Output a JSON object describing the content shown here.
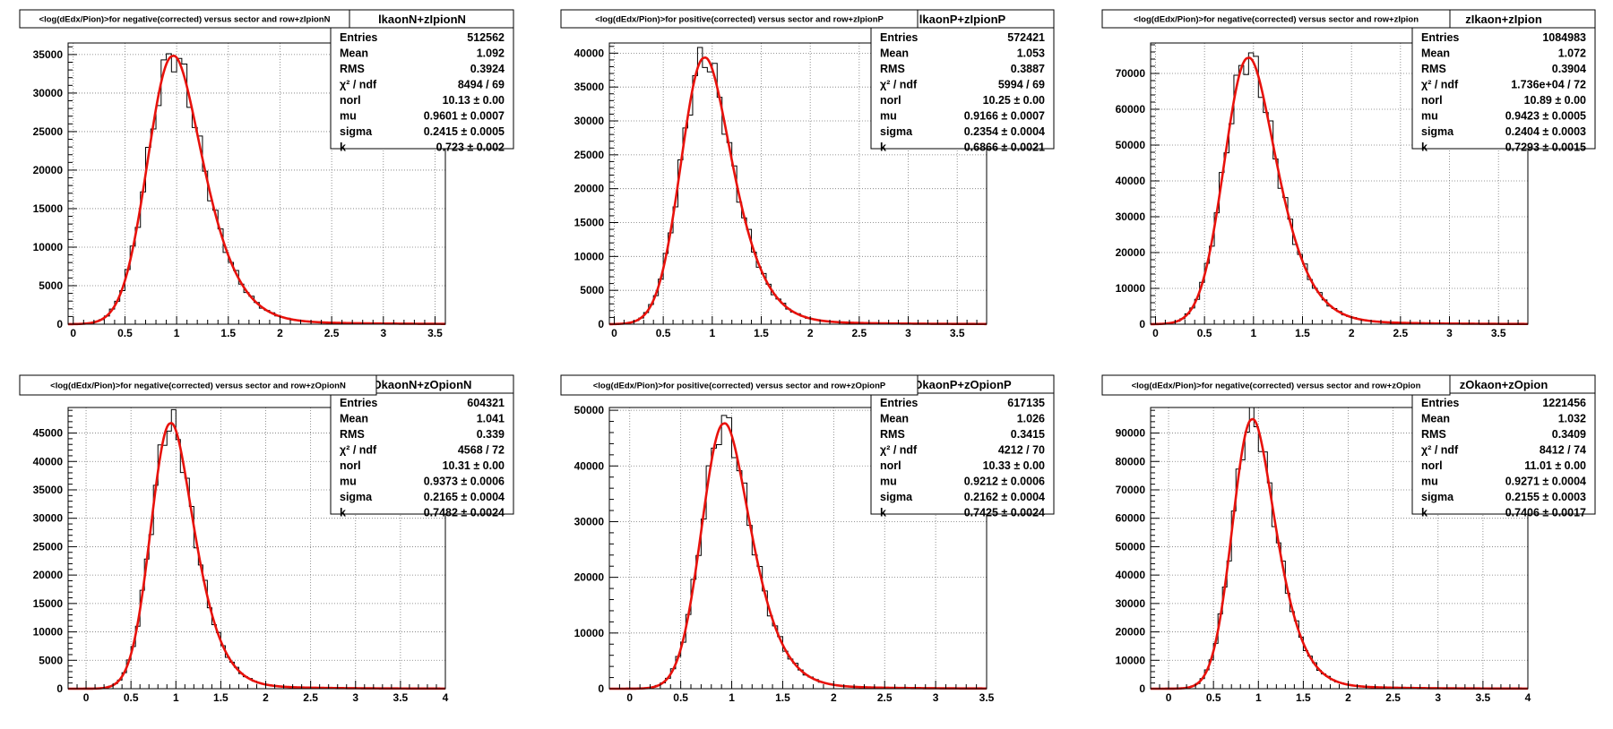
{
  "chart_data": [
    {
      "type": "histogram",
      "title": "<log(dEdx/Pion)>for negative(corrected) versus sector and row+zIpionN",
      "stats_name": "lkaonN+zIpionN",
      "xlim": [
        -0.05,
        3.6
      ],
      "ylim": [
        0,
        36500
      ],
      "xticks": [
        "0",
        "0.5",
        "1",
        "1.5",
        "2",
        "2.5",
        "3",
        "3.5"
      ],
      "yticks": [
        0,
        5000,
        10000,
        15000,
        20000,
        25000,
        30000,
        35000
      ],
      "grid": true,
      "peak": 34800,
      "stats": [
        {
          "label": "Entries",
          "value": "512562"
        },
        {
          "label": "Mean",
          "value": "1.092"
        },
        {
          "label": "RMS",
          "value": "0.3924"
        },
        {
          "label": "χ² / ndf",
          "value": "8494 / 69"
        },
        {
          "label": "norl",
          "value": "10.13 ± 0.00"
        },
        {
          "label": "mu",
          "value": "0.9601 ± 0.0007"
        },
        {
          "label": "sigma",
          "value": "0.2415 ± 0.0005"
        },
        {
          "label": "k",
          "value": "0.723 ± 0.002"
        }
      ],
      "fit": {
        "mu": 0.9601,
        "sigma": 0.2415,
        "k": 0.723
      }
    },
    {
      "type": "histogram",
      "title": "<log(dEdx/Pion)>for positive(corrected) versus sector and row+zIpionP",
      "stats_name": "lkaonP+zIpionP",
      "xlim": [
        -0.05,
        3.8
      ],
      "ylim": [
        0,
        41500
      ],
      "xticks": [
        "0",
        "0.5",
        "1",
        "1.5",
        "2",
        "2.5",
        "3",
        "3.5"
      ],
      "yticks": [
        0,
        5000,
        10000,
        15000,
        20000,
        25000,
        30000,
        35000,
        40000
      ],
      "grid": true,
      "peak": 39300,
      "stats": [
        {
          "label": "Entries",
          "value": "572421"
        },
        {
          "label": "Mean",
          "value": "1.053"
        },
        {
          "label": "RMS",
          "value": "0.3887"
        },
        {
          "label": "χ² / ndf",
          "value": "5994 / 69"
        },
        {
          "label": "norl",
          "value": "10.25 ± 0.00"
        },
        {
          "label": "mu",
          "value": "0.9166 ± 0.0007"
        },
        {
          "label": "sigma",
          "value": "0.2354 ± 0.0004"
        },
        {
          "label": "k",
          "value": "0.6866 ± 0.0021"
        }
      ],
      "fit": {
        "mu": 0.9166,
        "sigma": 0.2354,
        "k": 0.6866
      }
    },
    {
      "type": "histogram",
      "title": "<log(dEdx/Pion)>for negative(corrected) versus sector and row+zIpion",
      "stats_name": "zIkaon+zIpion",
      "xlim": [
        -0.05,
        3.8
      ],
      "ylim": [
        0,
        78500
      ],
      "xticks": [
        "0",
        "0.5",
        "1",
        "1.5",
        "2",
        "2.5",
        "3",
        "3.5"
      ],
      "yticks": [
        0,
        10000,
        20000,
        30000,
        40000,
        50000,
        60000,
        70000
      ],
      "grid": true,
      "peak": 74300,
      "stats": [
        {
          "label": "Entries",
          "value": "1084983"
        },
        {
          "label": "Mean",
          "value": "1.072"
        },
        {
          "label": "RMS",
          "value": "0.3904"
        },
        {
          "label": "χ² / ndf",
          "value": "1.736e+04 / 72"
        },
        {
          "label": "norl",
          "value": "10.89 ± 0.00"
        },
        {
          "label": "mu",
          "value": "0.9423 ± 0.0005"
        },
        {
          "label": "sigma",
          "value": "0.2404 ± 0.0003"
        },
        {
          "label": "k",
          "value": "0.7293 ± 0.0015"
        }
      ],
      "fit": {
        "mu": 0.9423,
        "sigma": 0.2404,
        "k": 0.7293
      }
    },
    {
      "type": "histogram",
      "title": "<log(dEdx/Pion)>for negative(corrected) versus sector and row+zOpionN",
      "stats_name": "OkaonN+zOpionN",
      "xlim": [
        -0.2,
        4.0
      ],
      "ylim": [
        0,
        49500
      ],
      "xticks": [
        "0",
        "0.5",
        "1",
        "1.5",
        "2",
        "2.5",
        "3",
        "3.5",
        "4"
      ],
      "yticks": [
        0,
        5000,
        10000,
        15000,
        20000,
        25000,
        30000,
        35000,
        40000,
        45000
      ],
      "grid": true,
      "peak": 46700,
      "stats": [
        {
          "label": "Entries",
          "value": "604321"
        },
        {
          "label": "Mean",
          "value": "1.041"
        },
        {
          "label": "RMS",
          "value": "0.339"
        },
        {
          "label": "χ² / ndf",
          "value": "4568 / 72"
        },
        {
          "label": "norl",
          "value": "10.31 ± 0.00"
        },
        {
          "label": "mu",
          "value": "0.9373 ± 0.0006"
        },
        {
          "label": "sigma",
          "value": "0.2165 ± 0.0004"
        },
        {
          "label": "k",
          "value": "0.7482 ± 0.0024"
        }
      ],
      "fit": {
        "mu": 0.9373,
        "sigma": 0.2165,
        "k": 0.7482
      }
    },
    {
      "type": "histogram",
      "title": "<log(dEdx/Pion)>for positive(corrected) versus sector and row+zOpionP",
      "stats_name": "OkaonP+zOpionP",
      "xlim": [
        -0.2,
        3.5
      ],
      "ylim": [
        0,
        50500
      ],
      "xticks": [
        "0",
        "0.5",
        "1",
        "1.5",
        "2",
        "2.5",
        "3",
        "3.5"
      ],
      "yticks": [
        0,
        10000,
        20000,
        30000,
        40000,
        50000
      ],
      "grid": true,
      "peak": 47600,
      "stats": [
        {
          "label": "Entries",
          "value": "617135"
        },
        {
          "label": "Mean",
          "value": "1.026"
        },
        {
          "label": "RMS",
          "value": "0.3415"
        },
        {
          "label": "χ² / ndf",
          "value": "4212 / 70"
        },
        {
          "label": "norl",
          "value": "10.33 ± 0.00"
        },
        {
          "label": "mu",
          "value": "0.9212 ± 0.0006"
        },
        {
          "label": "sigma",
          "value": "0.2162 ± 0.0004"
        },
        {
          "label": "k",
          "value": "0.7425 ± 0.0024"
        }
      ],
      "fit": {
        "mu": 0.9212,
        "sigma": 0.2162,
        "k": 0.7425
      }
    },
    {
      "type": "histogram",
      "title": "<log(dEdx/Pion)>for negative(corrected) versus sector and row+zOpion",
      "stats_name": "zOkaon+zOpion",
      "xlim": [
        -0.2,
        4.0
      ],
      "ylim": [
        0,
        99000
      ],
      "xticks": [
        "0",
        "0.5",
        "1",
        "1.5",
        "2",
        "2.5",
        "3",
        "3.5",
        "4"
      ],
      "yticks": [
        0,
        10000,
        20000,
        30000,
        40000,
        50000,
        60000,
        70000,
        80000,
        90000
      ],
      "grid": true,
      "peak": 94800,
      "stats": [
        {
          "label": "Entries",
          "value": "1221456"
        },
        {
          "label": "Mean",
          "value": "1.032"
        },
        {
          "label": "RMS",
          "value": "0.3409"
        },
        {
          "label": "χ² / ndf",
          "value": "8412 / 74"
        },
        {
          "label": "norl",
          "value": "11.01 ± 0.00"
        },
        {
          "label": "mu",
          "value": "0.9271 ± 0.0004"
        },
        {
          "label": "sigma",
          "value": "0.2155 ± 0.0003"
        },
        {
          "label": "k",
          "value": "0.7406 ± 0.0017"
        }
      ],
      "fit": {
        "mu": 0.9271,
        "sigma": 0.2155,
        "k": 0.7406
      }
    }
  ],
  "colors": {
    "histogram": "#000000",
    "fit": "#e8120c",
    "grid": "#777777",
    "frame": "#000000"
  }
}
